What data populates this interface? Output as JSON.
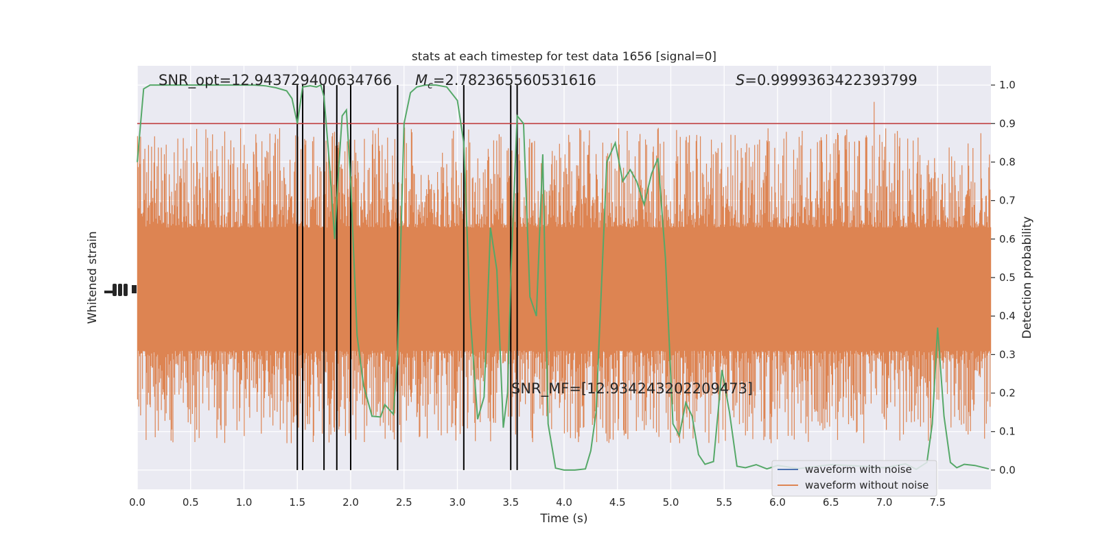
{
  "chart_data": {
    "type": "line",
    "title": "stats at each timestep for test data 1656 [signal=0]",
    "xlabel": "Time (s)",
    "ylabel_left": "Whitened strain",
    "ylabel_right": "Detection probability",
    "xlim": [
      0,
      8
    ],
    "ylim_right": [
      -0.05,
      1.05
    ],
    "x_ticks": [
      "0.0",
      "0.5",
      "1.0",
      "1.5",
      "2.0",
      "2.5",
      "3.0",
      "3.5",
      "4.0",
      "4.5",
      "5.0",
      "5.5",
      "6.0",
      "6.5",
      "7.0",
      "7.5"
    ],
    "y_ticks_right": [
      "0.0",
      "0.1",
      "0.2",
      "0.3",
      "0.4",
      "0.5",
      "0.6",
      "0.7",
      "0.8",
      "0.9",
      "1.0"
    ],
    "annotations": {
      "snr_opt": "SNR_opt=12.943729400634766",
      "mc": "=2.782365560531616",
      "mc_symbol": "M",
      "mc_sub": "c",
      "s_stat": "=0.9999363422393799",
      "s_symbol": "S",
      "snr_mf": "SNR_MF=[12.934243202209473]"
    },
    "threshold": 0.9,
    "trigger_times": [
      1.5,
      1.55,
      1.75,
      1.87,
      2.0,
      2.44,
      3.06,
      3.5,
      3.56
    ],
    "legend": {
      "placement": "lower-right",
      "entries": [
        {
          "label": "waveform with noise",
          "color": "#4c72b0"
        },
        {
          "label": "waveform without noise",
          "color": "#dd8452"
        }
      ]
    },
    "series": [
      {
        "kind": "probability",
        "color": "#55a868",
        "x": [
          0.0,
          0.06,
          0.12,
          0.2,
          0.4,
          0.6,
          0.8,
          1.0,
          1.1,
          1.2,
          1.3,
          1.4,
          1.45,
          1.5,
          1.55,
          1.62,
          1.68,
          1.72,
          1.75,
          1.8,
          1.85,
          1.88,
          1.92,
          1.96,
          2.0,
          2.06,
          2.12,
          2.2,
          2.28,
          2.32,
          2.4,
          2.44,
          2.5,
          2.56,
          2.62,
          2.7,
          2.8,
          2.9,
          3.0,
          3.06,
          3.12,
          3.19,
          3.25,
          3.31,
          3.37,
          3.43,
          3.47,
          3.5,
          3.56,
          3.62,
          3.68,
          3.74,
          3.8,
          3.85,
          3.92,
          4.0,
          4.1,
          4.2,
          4.25,
          4.3,
          4.4,
          4.48,
          4.55,
          4.62,
          4.68,
          4.75,
          4.82,
          4.88,
          4.95,
          5.02,
          5.08,
          5.14,
          5.2,
          5.26,
          5.32,
          5.4,
          5.48,
          5.55,
          5.62,
          5.7,
          5.8,
          5.9,
          6.0,
          6.2,
          6.5,
          6.8,
          7.0,
          7.2,
          7.3,
          7.4,
          7.45,
          7.5,
          7.56,
          7.62,
          7.68,
          7.75,
          7.85,
          7.98
        ],
        "y": [
          0.8,
          0.99,
          1.0,
          1.0,
          1.0,
          1.0,
          1.0,
          1.0,
          1.0,
          0.998,
          0.993,
          0.985,
          0.965,
          0.9,
          0.995,
          0.998,
          0.995,
          1.0,
          0.97,
          0.8,
          0.6,
          0.75,
          0.92,
          0.935,
          0.75,
          0.35,
          0.22,
          0.14,
          0.138,
          0.17,
          0.145,
          0.3,
          0.9,
          0.98,
          0.995,
          1.0,
          1.0,
          0.995,
          0.96,
          0.85,
          0.4,
          0.132,
          0.19,
          0.63,
          0.52,
          0.11,
          0.2,
          0.5,
          0.92,
          0.9,
          0.45,
          0.4,
          0.82,
          0.12,
          0.005,
          0.0,
          0.0,
          0.003,
          0.05,
          0.15,
          0.8,
          0.85,
          0.75,
          0.78,
          0.75,
          0.69,
          0.77,
          0.81,
          0.55,
          0.12,
          0.09,
          0.175,
          0.14,
          0.04,
          0.015,
          0.022,
          0.26,
          0.15,
          0.01,
          0.006,
          0.014,
          0.003,
          0.012,
          0.004,
          0.014,
          0.01,
          0.006,
          0.016,
          0.002,
          0.02,
          0.12,
          0.37,
          0.14,
          0.02,
          0.006,
          0.015,
          0.012,
          0.003
        ]
      },
      {
        "kind": "waveform",
        "name": "waveform without noise",
        "color": "#dd8452",
        "center": 0.47,
        "core_half_width": 0.16,
        "spike_range": [
          0.07,
          0.98
        ]
      }
    ]
  }
}
